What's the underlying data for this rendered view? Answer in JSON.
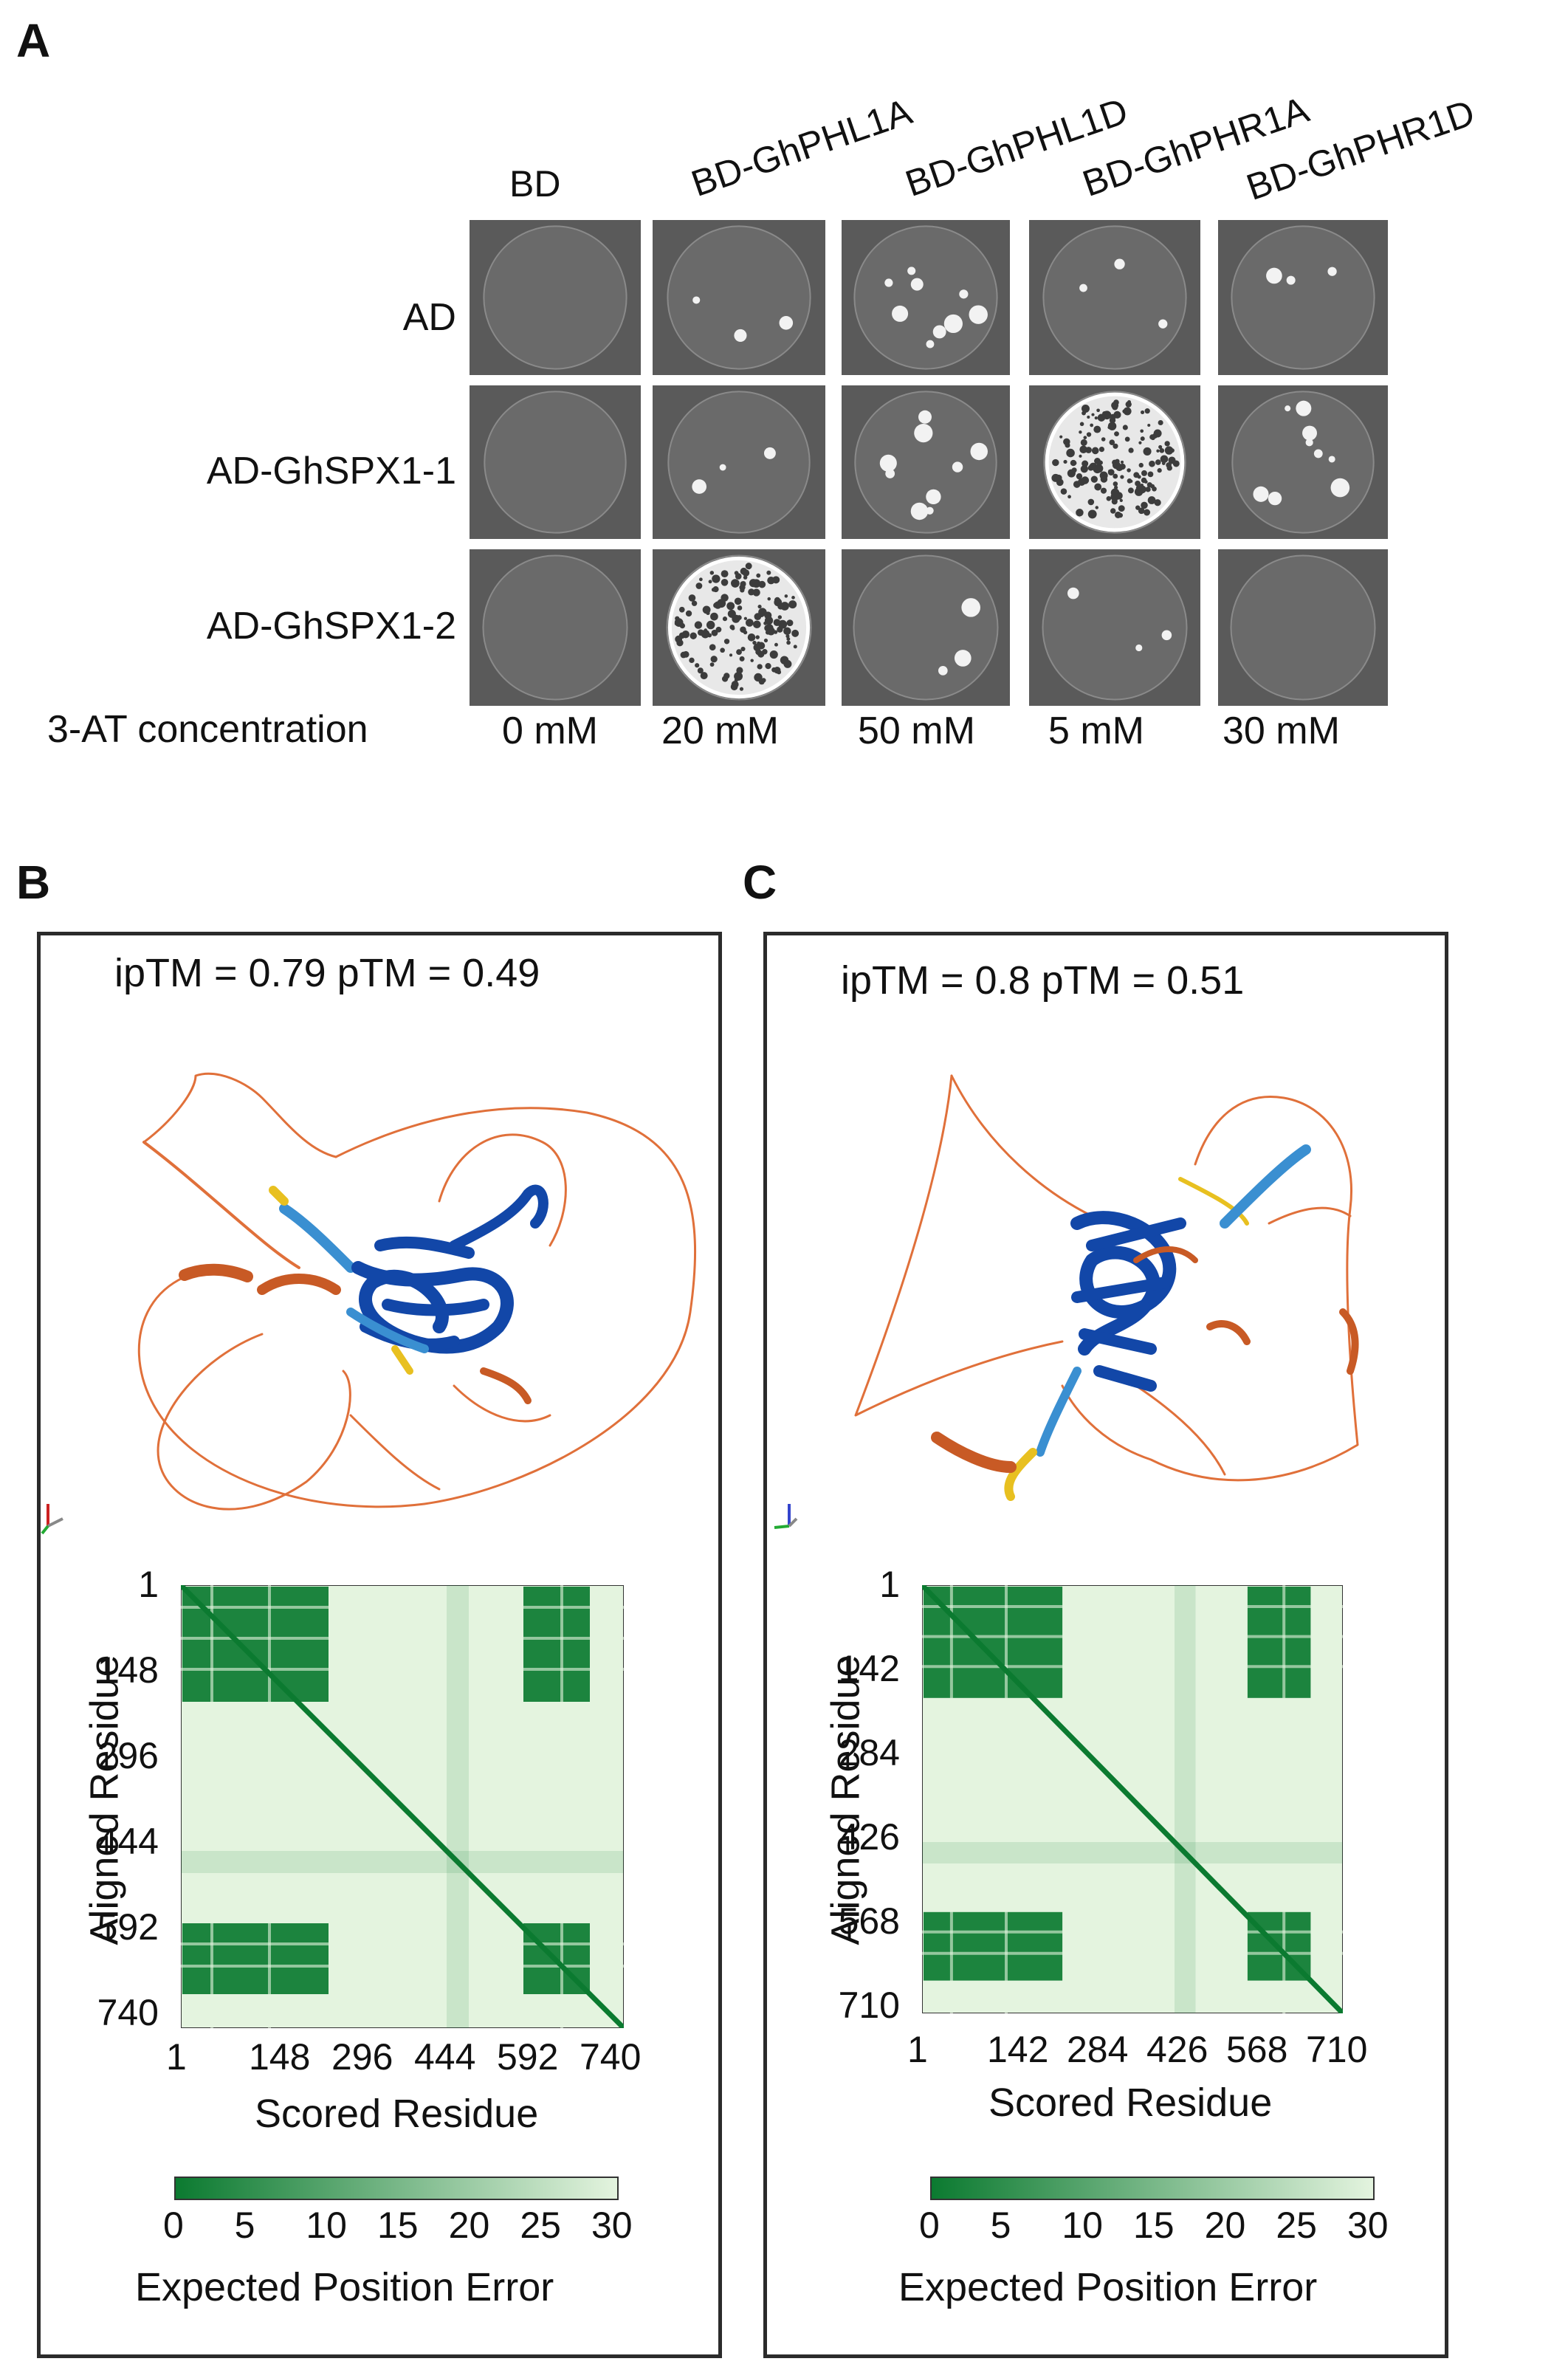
{
  "panelA": {
    "letter": "A",
    "columns": [
      "BD",
      "BD-GhPHL1A",
      "BD-GhPHL1D",
      "BD-GhPHR1A",
      "BD-GhPHR1D"
    ],
    "rows": [
      "AD",
      "AD-GhSPX1-1",
      "AD-GhSPX1-2"
    ],
    "concentration_label": "3-AT concentration",
    "concentrations": [
      "0 mM",
      "20 mM",
      "50 mM",
      "5 mM",
      "30 mM"
    ],
    "growth": [
      [
        "none",
        "sparse",
        "few-colonies",
        "sparse",
        "sparse"
      ],
      [
        "none",
        "sparse",
        "few-colonies",
        "strong",
        "few-colonies"
      ],
      [
        "none",
        "strong",
        "sparse",
        "sparse",
        "none"
      ]
    ]
  },
  "panelB": {
    "letter": "B",
    "score": "ipTM = 0.79 pTM = 0.49",
    "y_ticks": [
      "1",
      "148",
      "296",
      "444",
      "592",
      "740"
    ],
    "x_ticks": [
      "1",
      "148",
      "296",
      "444",
      "592",
      "740"
    ],
    "y_label": "Aligned Residue",
    "x_label": "Scored Residue",
    "cbar_ticks": [
      "0",
      "5",
      "10",
      "15",
      "20",
      "25",
      "30"
    ],
    "cbar_label": "Expected Position Error"
  },
  "panelC": {
    "letter": "C",
    "score": "ipTM = 0.8 pTM = 0.51",
    "y_ticks": [
      "1",
      "142",
      "284",
      "426",
      "568",
      "710"
    ],
    "x_ticks": [
      "1",
      "142",
      "284",
      "426",
      "568",
      "710"
    ],
    "y_label": "Aligned Residue",
    "x_label": "Scored Residue",
    "cbar_ticks": [
      "0",
      "5",
      "10",
      "15",
      "20",
      "25",
      "30"
    ],
    "cbar_label": "Expected Position Error"
  },
  "colors": {
    "pae_low": "#0b7a30",
    "pae_high": "#e4f4df",
    "plate_bg": "#5a5a5a",
    "helix_core": "#1247a8",
    "helix_mid": "#3a8fd1",
    "loop": "#e0703a",
    "helix_low": "#c85a25",
    "helix_yellow": "#e8c020"
  }
}
